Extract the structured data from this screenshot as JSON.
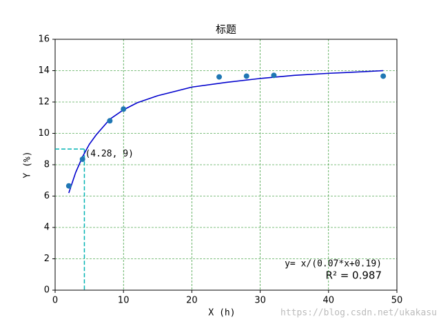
{
  "chart_data": {
    "type": "scatter",
    "title": "标题",
    "xlabel": "X (h)",
    "ylabel": "Y (%)",
    "xlim": [
      0,
      50
    ],
    "ylim": [
      0,
      16
    ],
    "xticks": [
      0,
      10,
      20,
      30,
      40,
      50
    ],
    "yticks": [
      0,
      2,
      4,
      6,
      8,
      10,
      12,
      14,
      16
    ],
    "grid": true,
    "grid_color": "#008000",
    "points": {
      "color": "#1f77b4",
      "x": [
        2,
        4,
        8,
        10,
        24,
        28,
        32,
        48
      ],
      "y": [
        6.65,
        8.35,
        10.8,
        11.55,
        13.6,
        13.65,
        13.7,
        13.65
      ]
    },
    "fit": {
      "color": "#0000cd",
      "x": [
        2,
        3,
        4,
        5,
        6,
        8,
        10,
        12,
        15,
        20,
        25,
        30,
        35,
        40,
        45,
        48
      ],
      "y": [
        6.2,
        7.5,
        8.5,
        9.3,
        9.9,
        10.9,
        11.5,
        11.95,
        12.4,
        12.95,
        13.25,
        13.5,
        13.7,
        13.83,
        13.93,
        14.0
      ]
    },
    "annotation": {
      "x": 4.28,
      "y": 9,
      "label": "(4.28, 9)",
      "color": "#00b3b3"
    },
    "equation": "y= x/(0.07*x+0.19)",
    "r_squared": "R² = 0.987",
    "watermark": "https://blog.csdn.net/ukakasu"
  }
}
